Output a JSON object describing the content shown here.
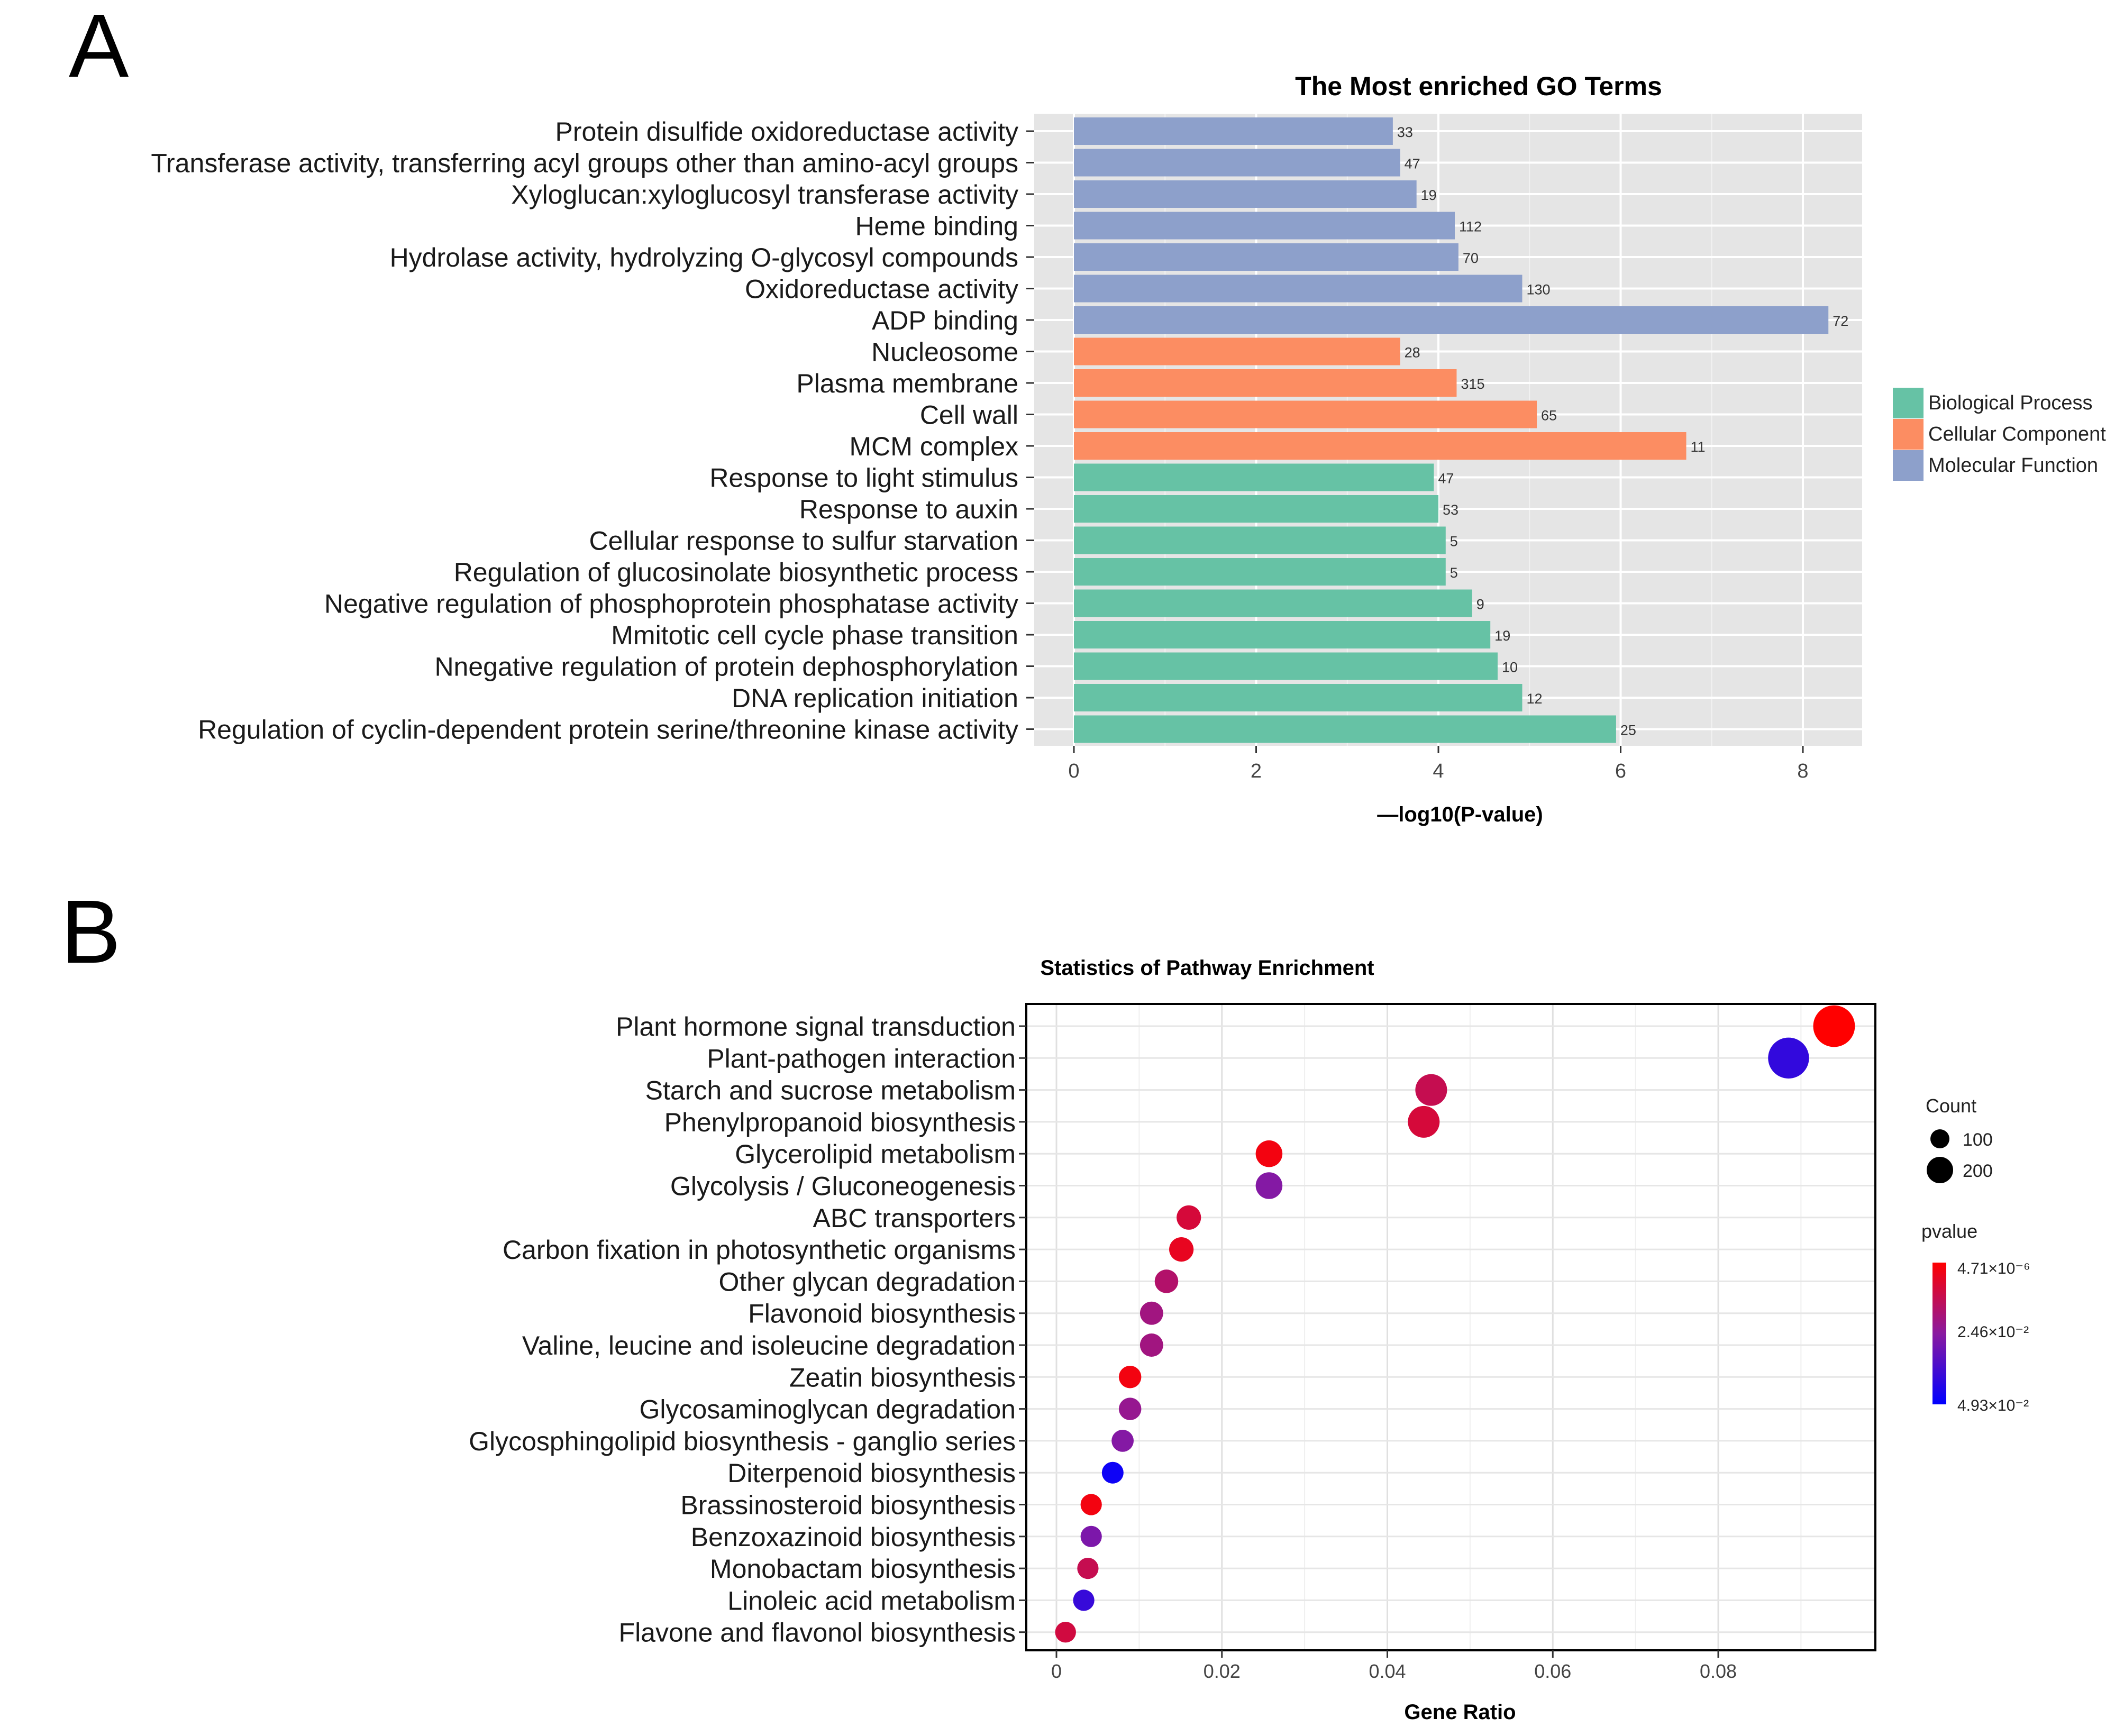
{
  "panel_labels": {
    "a": "A",
    "b": "B"
  },
  "colors": {
    "biological_process": "#66c2a5",
    "cellular_component": "#fc8d62",
    "molecular_function": "#8da0cb",
    "panel_bg": "#e5e5e5",
    "grid": "#ffffff",
    "pval_high": "#ff0000",
    "pval_mid": "#8a1aa0",
    "pval_low": "#0000ff"
  },
  "chart_data": [
    {
      "type": "bar",
      "orientation": "horizontal",
      "title": "The Most enriched GO Terms",
      "xlabel": "—log10(P-value)",
      "ylabel": "",
      "xlim": [
        0,
        8.7
      ],
      "xticks": [
        0,
        2,
        4,
        6,
        8
      ],
      "grid": true,
      "legend_position": "right",
      "legend": [
        {
          "label": "Biological Process",
          "key": "biological_process"
        },
        {
          "label": "Cellular Component",
          "key": "cellular_component"
        },
        {
          "label": "Molecular Function",
          "key": "molecular_function"
        }
      ],
      "bars": [
        {
          "term": "Protein disulfide oxidoreductase activity",
          "value": 3.5,
          "count": "33",
          "category": "molecular_function"
        },
        {
          "term": "Transferase activity, transferring acyl groups other than amino-acyl groups",
          "value": 3.58,
          "count": "47",
          "category": "molecular_function"
        },
        {
          "term": "Xyloglucan:xyloglucosyl transferase activity",
          "value": 3.76,
          "count": "19",
          "category": "molecular_function"
        },
        {
          "term": "Heme binding",
          "value": 4.18,
          "count": "112",
          "category": "molecular_function"
        },
        {
          "term": "Hydrolase activity, hydrolyzing O-glycosyl compounds",
          "value": 4.22,
          "count": "70",
          "category": "molecular_function"
        },
        {
          "term": "Oxidoreductase activity",
          "value": 4.92,
          "count": "130",
          "category": "molecular_function"
        },
        {
          "term": "ADP binding",
          "value": 8.28,
          "count": "72",
          "category": "molecular_function"
        },
        {
          "term": "Nucleosome",
          "value": 3.58,
          "count": "28",
          "category": "cellular_component"
        },
        {
          "term": "Plasma membrane",
          "value": 4.2,
          "count": "315",
          "category": "cellular_component"
        },
        {
          "term": "Cell wall",
          "value": 5.08,
          "count": "65",
          "category": "cellular_component"
        },
        {
          "term": "MCM complex",
          "value": 6.72,
          "count": "11",
          "category": "cellular_component"
        },
        {
          "term": "Response to light stimulus",
          "value": 3.95,
          "count": "47",
          "category": "biological_process"
        },
        {
          "term": "Response to auxin",
          "value": 4.0,
          "count": "53",
          "category": "biological_process"
        },
        {
          "term": "Cellular response to sulfur starvation",
          "value": 4.08,
          "count": "5",
          "category": "biological_process"
        },
        {
          "term": "Regulation of glucosinolate biosynthetic process",
          "value": 4.08,
          "count": "5",
          "category": "biological_process"
        },
        {
          "term": "Negative regulation of phosphoprotein phosphatase activity",
          "value": 4.37,
          "count": "9",
          "category": "biological_process"
        },
        {
          "term": "Mmitotic cell cycle phase transition",
          "value": 4.57,
          "count": "19",
          "category": "biological_process"
        },
        {
          "term": "Nnegative regulation of protein dephosphorylation",
          "value": 4.65,
          "count": "10",
          "category": "biological_process"
        },
        {
          "term": "DNA replication initiation",
          "value": 4.92,
          "count": "12",
          "category": "biological_process"
        },
        {
          "term": "Regulation of cyclin-dependent protein serine/threonine kinase activity",
          "value": 5.95,
          "count": "25",
          "category": "biological_process"
        }
      ]
    },
    {
      "type": "scatter",
      "title": "Statistics of Pathway Enrichment",
      "xlabel": "Gene Ratio",
      "ylabel": "",
      "xlim": [
        -0.0035,
        0.0995
      ],
      "xticks": [
        0,
        0.02,
        0.04,
        0.06,
        0.08
      ],
      "xtick_labels": [
        "0",
        "0.02",
        "0.04",
        "0.06",
        "0.08"
      ],
      "grid": true,
      "size_legend": {
        "title": "Count",
        "entries": [
          {
            "label": "100",
            "value": 100
          },
          {
            "label": "200",
            "value": 200
          }
        ]
      },
      "color_legend": {
        "title": "pvalue",
        "labels": [
          {
            "label": "4.71×10⁻⁶",
            "position": 0
          },
          {
            "label": "2.46×10⁻²",
            "position": 0.5
          },
          {
            "label": "4.93×10⁻²",
            "position": 1
          }
        ]
      },
      "points": [
        {
          "pathway": "Plant hormone signal transduction",
          "ratio": 0.094,
          "count": 210,
          "pvalue_scale": 0.0
        },
        {
          "pathway": "Plant-pathogen interaction",
          "ratio": 0.0885,
          "count": 200,
          "pvalue_scale": 0.82
        },
        {
          "pathway": "Starch and sucrose metabolism",
          "ratio": 0.0453,
          "count": 100,
          "pvalue_scale": 0.25
        },
        {
          "pathway": "Phenylpropanoid biosynthesis",
          "ratio": 0.0444,
          "count": 100,
          "pvalue_scale": 0.18
        },
        {
          "pathway": "Glycerolipid metabolism",
          "ratio": 0.0257,
          "count": 60,
          "pvalue_scale": 0.05
        },
        {
          "pathway": "Glycolysis / Gluconeogenesis",
          "ratio": 0.0257,
          "count": 60,
          "pvalue_scale": 0.52
        },
        {
          "pathway": "ABC transporters",
          "ratio": 0.016,
          "count": 45,
          "pvalue_scale": 0.18
        },
        {
          "pathway": "Carbon fixation in photosynthetic organisms",
          "ratio": 0.0151,
          "count": 45,
          "pvalue_scale": 0.1
        },
        {
          "pathway": "Other glycan degradation",
          "ratio": 0.0133,
          "count": 40,
          "pvalue_scale": 0.33
        },
        {
          "pathway": "Flavonoid biosynthesis",
          "ratio": 0.0115,
          "count": 38,
          "pvalue_scale": 0.4
        },
        {
          "pathway": "Valine, leucine and isoleucine degradation",
          "ratio": 0.0115,
          "count": 38,
          "pvalue_scale": 0.4
        },
        {
          "pathway": "Zeatin biosynthesis",
          "ratio": 0.0089,
          "count": 34,
          "pvalue_scale": 0.05
        },
        {
          "pathway": "Glycosaminoglycan degradation",
          "ratio": 0.0089,
          "count": 34,
          "pvalue_scale": 0.45
        },
        {
          "pathway": "Glycosphingolipid biosynthesis - ganglio series",
          "ratio": 0.008,
          "count": 32,
          "pvalue_scale": 0.52
        },
        {
          "pathway": "Diterpenoid biosynthesis",
          "ratio": 0.0068,
          "count": 30,
          "pvalue_scale": 0.95
        },
        {
          "pathway": "Brassinosteroid biosynthesis",
          "ratio": 0.0042,
          "count": 28,
          "pvalue_scale": 0.05
        },
        {
          "pathway": "Benzoxazinoid biosynthesis",
          "ratio": 0.0042,
          "count": 28,
          "pvalue_scale": 0.55
        },
        {
          "pathway": "Monobactam biosynthesis",
          "ratio": 0.0038,
          "count": 28,
          "pvalue_scale": 0.25
        },
        {
          "pathway": "Linoleic acid metabolism",
          "ratio": 0.0033,
          "count": 28,
          "pvalue_scale": 0.8
        },
        {
          "pathway": "Flavone and flavonol biosynthesis",
          "ratio": 0.0011,
          "count": 26,
          "pvalue_scale": 0.2
        }
      ]
    }
  ]
}
